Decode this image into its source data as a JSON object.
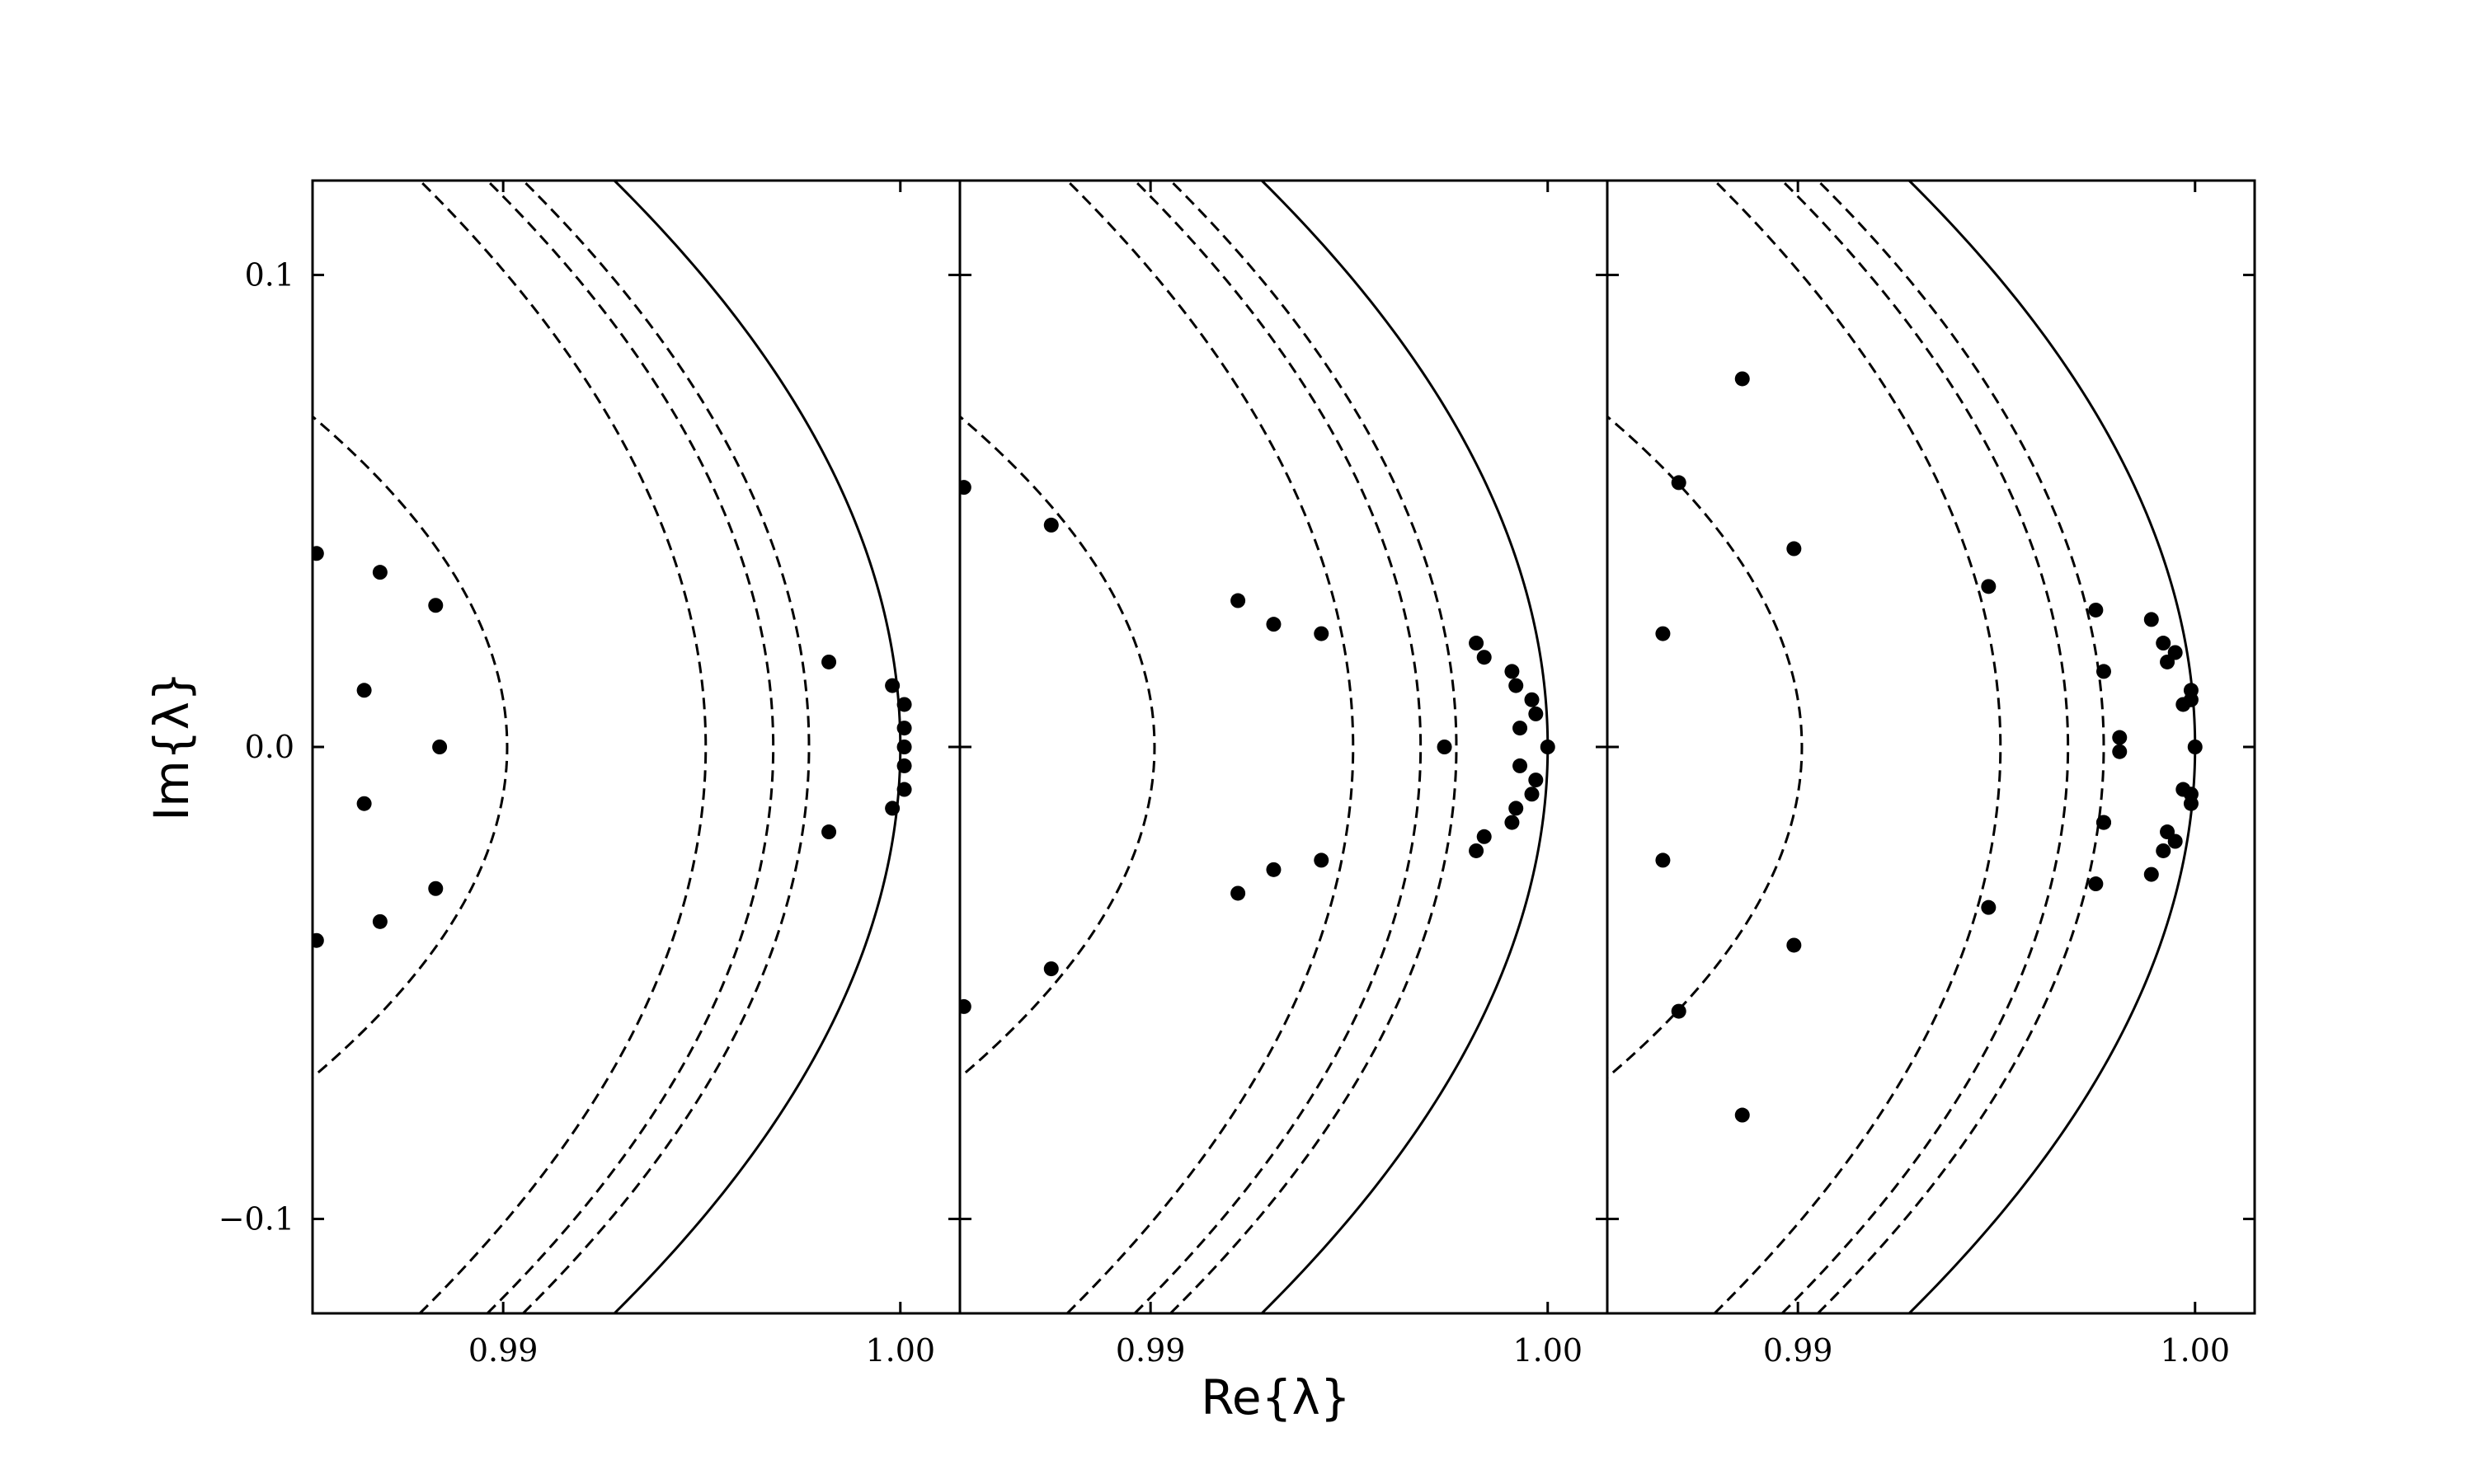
{
  "chart_data": {
    "type": "scatter",
    "xlabel": "Re{λ}",
    "ylabel": "Im{λ}",
    "xlim": [
      0.9852,
      1.0015
    ],
    "ylim": [
      -0.12,
      0.12
    ],
    "x_ticks": [
      0.99,
      1.0
    ],
    "x_tick_labels": [
      "0.99",
      "1.00"
    ],
    "y_ticks": [
      0.1,
      0.0,
      -0.1
    ],
    "y_tick_labels": [
      "0.1",
      "0.0",
      "−0.1"
    ],
    "grid": false,
    "legend": "none",
    "boundary_curves": {
      "solid": {
        "style": "solid",
        "vertex_re": 1.0,
        "curvature": 0.5
      },
      "dashed": [
        {
          "style": "dashed",
          "vertex_re": 0.9951,
          "curvature": 0.5
        },
        {
          "style": "dashed",
          "vertex_re": 0.9968,
          "curvature": 0.5
        },
        {
          "style": "dashed",
          "vertex_re": 0.9977,
          "curvature": 0.5
        },
        {
          "style": "dashed",
          "vertex_re": 0.9901,
          "curvature": 1.0
        }
      ]
    },
    "panels": [
      {
        "points": [
          [
            0.9853,
            0.041
          ],
          [
            0.9853,
            -0.041
          ],
          [
            0.9869,
            0.037
          ],
          [
            0.9869,
            -0.037
          ],
          [
            0.9865,
            0.012
          ],
          [
            0.9865,
            -0.012
          ],
          [
            0.9883,
            0.03
          ],
          [
            0.9883,
            -0.03
          ],
          [
            0.9884,
            0.0
          ],
          [
            0.9982,
            0.018
          ],
          [
            0.9982,
            -0.018
          ],
          [
            0.9998,
            0.013
          ],
          [
            0.9998,
            -0.013
          ],
          [
            1.0001,
            0.009
          ],
          [
            1.0001,
            -0.009
          ],
          [
            1.0001,
            0.004
          ],
          [
            1.0001,
            -0.004
          ],
          [
            1.0001,
            0.0
          ]
        ]
      },
      {
        "points": [
          [
            0.9853,
            0.055
          ],
          [
            0.9853,
            -0.055
          ],
          [
            0.9875,
            0.047
          ],
          [
            0.9875,
            -0.047
          ],
          [
            0.9922,
            0.031
          ],
          [
            0.9922,
            -0.031
          ],
          [
            0.9931,
            0.026
          ],
          [
            0.9931,
            -0.026
          ],
          [
            0.9943,
            0.024
          ],
          [
            0.9943,
            -0.024
          ],
          [
            0.9982,
            0.022
          ],
          [
            0.9982,
            -0.022
          ],
          [
            0.9984,
            0.019
          ],
          [
            0.9984,
            -0.019
          ],
          [
            0.9974,
            0.0
          ],
          [
            0.9991,
            0.016
          ],
          [
            0.9991,
            -0.016
          ],
          [
            0.9992,
            0.013
          ],
          [
            0.9992,
            -0.013
          ],
          [
            0.9996,
            0.01
          ],
          [
            0.9996,
            -0.01
          ],
          [
            0.9997,
            0.007
          ],
          [
            0.9997,
            -0.007
          ],
          [
            0.9993,
            0.004
          ],
          [
            0.9993,
            -0.004
          ],
          [
            1.0,
            0.0
          ]
        ]
      },
      {
        "points": [
          [
            0.9886,
            0.078
          ],
          [
            0.9886,
            -0.078
          ],
          [
            0.987,
            0.056
          ],
          [
            0.987,
            -0.056
          ],
          [
            0.9866,
            0.024
          ],
          [
            0.9866,
            -0.024
          ],
          [
            0.9899,
            0.042
          ],
          [
            0.9899,
            -0.042
          ],
          [
            0.9948,
            0.034
          ],
          [
            0.9948,
            -0.034
          ],
          [
            0.9975,
            0.029
          ],
          [
            0.9975,
            -0.029
          ],
          [
            0.9977,
            0.016
          ],
          [
            0.9977,
            -0.016
          ],
          [
            0.9977,
            -0.016
          ],
          [
            0.9981,
            0.002
          ],
          [
            0.9981,
            -0.001
          ],
          [
            0.9989,
            0.027
          ],
          [
            0.9989,
            -0.027
          ],
          [
            0.9992,
            0.022
          ],
          [
            0.9992,
            -0.022
          ],
          [
            0.9993,
            0.018
          ],
          [
            0.9993,
            -0.018
          ],
          [
            0.9995,
            0.02
          ],
          [
            0.9995,
            -0.02
          ],
          [
            0.9997,
            0.009
          ],
          [
            0.9997,
            -0.009
          ],
          [
            0.9999,
            0.012
          ],
          [
            0.9999,
            -0.012
          ],
          [
            0.9999,
            0.01
          ],
          [
            0.9999,
            -0.01
          ],
          [
            1.0,
            0.0
          ]
        ]
      }
    ]
  }
}
